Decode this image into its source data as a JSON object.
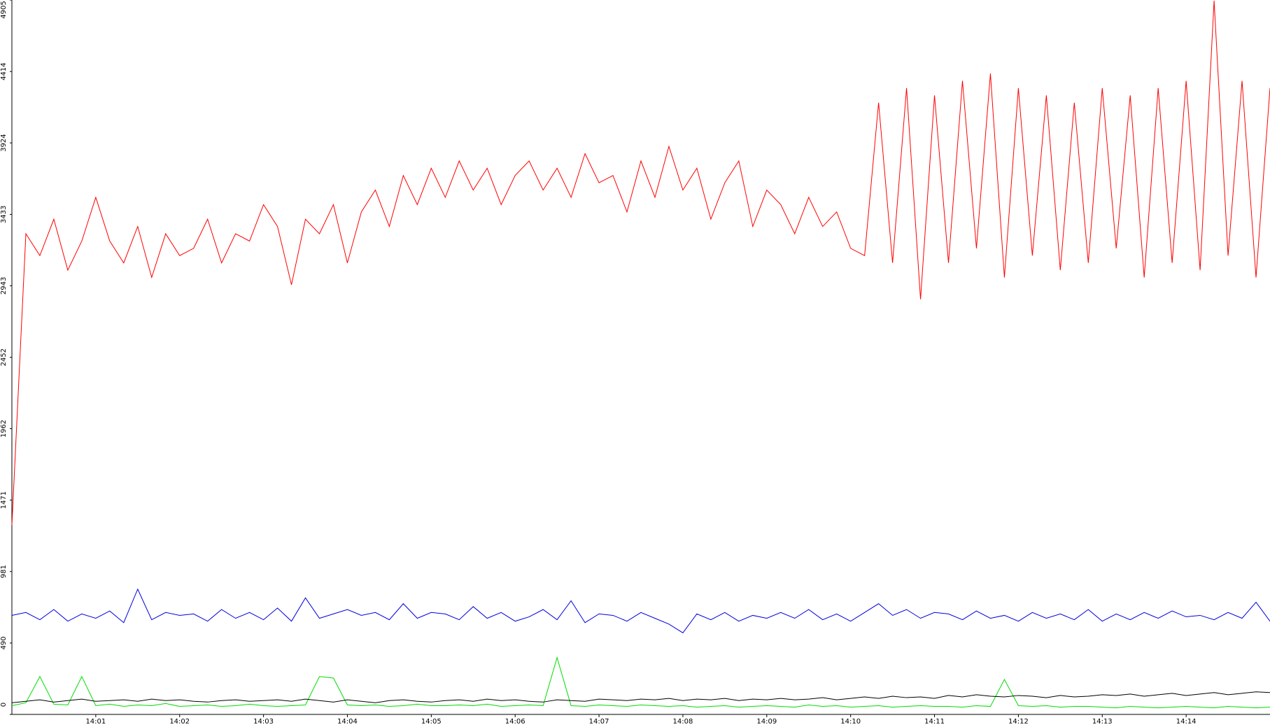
{
  "chart_data": {
    "type": "line",
    "categories": [
      null,
      null,
      null,
      null,
      null,
      null,
      "14:01",
      null,
      null,
      null,
      null,
      null,
      "14:02",
      null,
      null,
      null,
      null,
      null,
      "14:03",
      null,
      null,
      null,
      null,
      null,
      "14:04",
      null,
      null,
      null,
      null,
      null,
      "14:05",
      null,
      null,
      null,
      null,
      null,
      "14:06",
      null,
      null,
      null,
      null,
      null,
      "14:07",
      null,
      null,
      null,
      null,
      null,
      "14:08",
      null,
      null,
      null,
      null,
      null,
      "14:09",
      null,
      null,
      null,
      null,
      null,
      "14:10",
      null,
      null,
      null,
      null,
      null,
      "14:11",
      null,
      null,
      null,
      null,
      null,
      "14:12",
      null,
      null,
      null,
      null,
      null,
      "14:13",
      null,
      null,
      null,
      null,
      null,
      "14:14",
      null,
      null,
      null,
      null,
      null,
      null
    ],
    "ylim": [
      0,
      4905
    ],
    "yticks": [
      0,
      490,
      981,
      1471,
      1962,
      2452,
      2943,
      3433,
      3924,
      4414,
      4905
    ],
    "series": [
      {
        "color": "#ff0000",
        "values": [
          1300,
          3300,
          3150,
          3400,
          3050,
          3250,
          3550,
          3250,
          3100,
          3350,
          3000,
          3300,
          3150,
          3200,
          3400,
          3100,
          3300,
          3250,
          3500,
          3350,
          2950,
          3400,
          3300,
          3500,
          3100,
          3450,
          3600,
          3350,
          3700,
          3500,
          3750,
          3550,
          3800,
          3600,
          3750,
          3500,
          3700,
          3800,
          3600,
          3750,
          3550,
          3850,
          3650,
          3700,
          3450,
          3800,
          3550,
          3900,
          3600,
          3750,
          3400,
          3650,
          3800,
          3350,
          3600,
          3500,
          3300,
          3550,
          3350,
          3450,
          3200,
          3150,
          4200,
          3100,
          4300,
          2850,
          4250,
          3100,
          4350,
          3200,
          4400,
          3000,
          4300,
          3150,
          4250,
          3050,
          4200,
          3100,
          4300,
          3200,
          4250,
          3000,
          4300,
          3100,
          4350,
          3050,
          4900,
          3150,
          4350,
          3000,
          4300
        ]
      },
      {
        "color": "#0000dd",
        "values": [
          680,
          700,
          650,
          720,
          640,
          690,
          660,
          710,
          630,
          860,
          650,
          700,
          680,
          690,
          640,
          720,
          660,
          700,
          650,
          730,
          640,
          800,
          660,
          690,
          720,
          680,
          700,
          650,
          760,
          660,
          700,
          690,
          650,
          740,
          660,
          700,
          640,
          670,
          720,
          650,
          780,
          630,
          690,
          680,
          640,
          700,
          660,
          620,
          560,
          690,
          650,
          700,
          640,
          680,
          660,
          700,
          660,
          720,
          650,
          690,
          640,
          700,
          760,
          680,
          720,
          660,
          700,
          690,
          650,
          710,
          660,
          680,
          640,
          700,
          660,
          690,
          650,
          720,
          640,
          690,
          650,
          700,
          660,
          710,
          670,
          680,
          650,
          700,
          660,
          770,
          640
        ]
      },
      {
        "color": "#00dd00",
        "values": [
          60,
          80,
          260,
          70,
          65,
          260,
          60,
          70,
          55,
          65,
          60,
          75,
          55,
          60,
          65,
          55,
          60,
          70,
          60,
          55,
          60,
          65,
          260,
          250,
          65,
          60,
          65,
          55,
          60,
          70,
          60,
          60,
          65,
          60,
          70,
          55,
          60,
          65,
          60,
          390,
          60,
          55,
          65,
          60,
          55,
          65,
          60,
          55,
          60,
          50,
          55,
          60,
          50,
          55,
          60,
          55,
          50,
          65,
          55,
          60,
          50,
          55,
          60,
          50,
          55,
          60,
          55,
          55,
          50,
          60,
          55,
          240,
          60,
          55,
          60,
          50,
          55,
          55,
          50,
          45,
          55,
          50,
          45,
          50,
          55,
          50,
          45,
          55,
          50,
          45,
          50
        ]
      },
      {
        "color": "#000000",
        "values": [
          80,
          90,
          100,
          85,
          95,
          105,
          90,
          95,
          100,
          90,
          105,
          95,
          100,
          90,
          85,
          95,
          100,
          90,
          95,
          100,
          90,
          105,
          95,
          85,
          100,
          90,
          80,
          95,
          100,
          90,
          85,
          95,
          100,
          90,
          105,
          95,
          100,
          90,
          85,
          100,
          95,
          90,
          105,
          100,
          95,
          105,
          100,
          110,
          95,
          105,
          100,
          110,
          95,
          105,
          100,
          110,
          100,
          105,
          115,
          100,
          110,
          120,
          110,
          125,
          115,
          120,
          110,
          130,
          120,
          135,
          125,
          120,
          130,
          125,
          115,
          130,
          120,
          125,
          135,
          130,
          140,
          125,
          135,
          145,
          130,
          140,
          150,
          135,
          145,
          155,
          150
        ]
      }
    ]
  }
}
